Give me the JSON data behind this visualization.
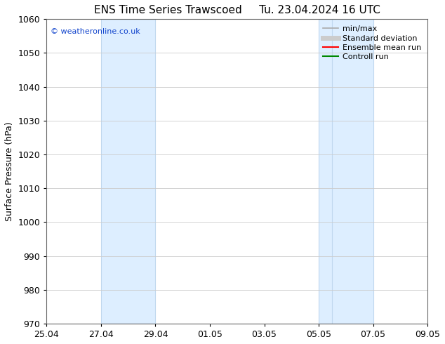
{
  "title_left": "ENS Time Series Trawscoed",
  "title_right": "Tu. 23.04.2024 16 UTC",
  "ylabel": "Surface Pressure (hPa)",
  "ylim": [
    970,
    1060
  ],
  "yticks": [
    970,
    980,
    990,
    1000,
    1010,
    1020,
    1030,
    1040,
    1050,
    1060
  ],
  "xtick_labels": [
    "25.04",
    "27.04",
    "29.04",
    "01.05",
    "03.05",
    "05.05",
    "07.05",
    "09.05"
  ],
  "x_dates_numeric": [
    0,
    2,
    4,
    6,
    8,
    10,
    12,
    14
  ],
  "x_min": 0,
  "x_max": 14,
  "shaded_bands": [
    {
      "x_start": 2.0,
      "x_end": 4.0
    },
    {
      "x_start": 10.0,
      "x_end": 10.5
    },
    {
      "x_start": 10.5,
      "x_end": 12.0
    }
  ],
  "shaded_colors": [
    "#ddeeff",
    "#ddeeff",
    "#ddeeff"
  ],
  "shaded_edge_color": "#c0d8ee",
  "copyright_text": "© weatheronline.co.uk",
  "copyright_color": "#1144cc",
  "legend_items": [
    {
      "label": "min/max",
      "color": "#aaaaaa",
      "lw": 1.2
    },
    {
      "label": "Standard deviation",
      "color": "#cccccc",
      "lw": 5
    },
    {
      "label": "Ensemble mean run",
      "color": "#ff0000",
      "lw": 1.5
    },
    {
      "label": "Controll run",
      "color": "#008800",
      "lw": 1.5
    }
  ],
  "background_color": "#ffffff",
  "grid_color": "#cccccc",
  "title_fontsize": 11,
  "tick_fontsize": 9,
  "ylabel_fontsize": 9,
  "legend_fontsize": 8
}
